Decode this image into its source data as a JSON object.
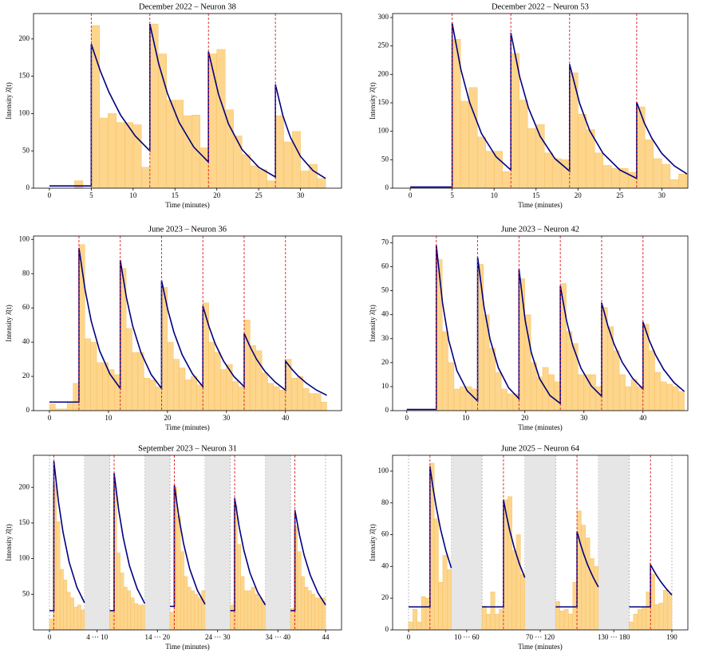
{
  "chart_data": [
    {
      "type": "histogram",
      "title": "December 2022 – Neuron 38",
      "xlabel": "Time (minutes)",
      "ylabel": "Intensity λ̂(t)",
      "bar_color": "#fdd58c",
      "bins": [
        0,
        1,
        2,
        3,
        4,
        5,
        6,
        7,
        8,
        9,
        10,
        11,
        12,
        13,
        14,
        15,
        16,
        17,
        18,
        19,
        20,
        21,
        22,
        23,
        24,
        25,
        26,
        27,
        28,
        29,
        30,
        31,
        32,
        33
      ],
      "counts": [
        0,
        0,
        0,
        10,
        0,
        218,
        94,
        100,
        88,
        88,
        85,
        28,
        220,
        180,
        118,
        118,
        97,
        98,
        54,
        180,
        186,
        105,
        70,
        45,
        30,
        25,
        10,
        97,
        62,
        76,
        23,
        32,
        13
      ],
      "fit": {
        "color": "#00007f",
        "x": [
          0,
          5,
          5,
          6.05,
          7.1,
          8.5,
          10.25,
          12,
          12,
          13.05,
          14.1,
          15.5,
          17.25,
          19,
          19,
          20.2,
          21.4,
          23,
          25,
          27,
          27,
          27.9,
          28.8,
          30,
          31.5,
          33
        ],
        "values": [
          3,
          3,
          193,
          158,
          129,
          98,
          70,
          50,
          220,
          167,
          127,
          88,
          55,
          35,
          183,
          126,
          86,
          52,
          28,
          15,
          139,
          97,
          68,
          42.5,
          23.5,
          13
        ]
      },
      "events": [
        5,
        12,
        19,
        27
      ],
      "event_color": "#e41a1c",
      "xlim": [
        -1.9,
        34.9
      ],
      "ylim": [
        0,
        234
      ],
      "xticks": [
        0,
        5,
        10,
        15,
        20,
        25,
        30
      ],
      "yticks": [
        0,
        50,
        100,
        150,
        200
      ]
    },
    {
      "type": "histogram",
      "title": "December 2022 – Neuron 53",
      "xlabel": "Time (minutes)",
      "ylabel": "Intensity λ̂(t)",
      "bar_color": "#fdd58c",
      "bins": [
        0,
        1,
        2,
        3,
        4,
        5,
        6,
        7,
        8,
        9,
        10,
        11,
        12,
        13,
        14,
        15,
        16,
        17,
        18,
        19,
        20,
        21,
        22,
        23,
        24,
        25,
        26,
        27,
        28,
        29,
        30,
        31,
        32,
        33
      ],
      "counts": [
        0,
        0,
        0,
        0,
        0,
        262,
        153,
        177,
        90,
        65,
        65,
        29,
        237,
        155,
        105,
        112,
        62,
        52,
        50,
        203,
        130,
        103,
        62,
        40,
        35,
        35,
        28,
        143,
        85,
        52,
        42,
        15,
        25
      ],
      "fit": {
        "color": "#00007f",
        "x": [
          0,
          5,
          5,
          6.05,
          7.1,
          8.5,
          10.25,
          12,
          12,
          13.05,
          14.1,
          15.5,
          17.25,
          19,
          19,
          20.2,
          21.4,
          23,
          25,
          27,
          27,
          27.9,
          28.8,
          30,
          31.5,
          33
        ],
        "values": [
          2,
          2,
          290,
          208,
          150,
          96,
          55,
          32,
          273,
          196,
          141,
          91,
          52,
          30,
          218,
          149,
          101,
          61,
          32,
          17,
          151,
          115,
          88,
          61,
          39,
          25
        ]
      },
      "events": [
        5,
        12,
        19,
        27
      ],
      "event_color": "#e41a1c",
      "xlim": [
        -2.1,
        33.1
      ],
      "ylim": [
        0,
        307
      ],
      "xticks": [
        0,
        5,
        10,
        15,
        20,
        25,
        30
      ],
      "yticks": [
        0,
        50,
        100,
        150,
        200,
        250,
        300
      ]
    },
    {
      "type": "histogram",
      "title": "June 2023 – Neuron 36",
      "xlabel": "Time (minutes)",
      "ylabel": "Intensity λ̂(t)",
      "bar_color": "#fdd58c",
      "bins": [
        0,
        1,
        2,
        3,
        4,
        5,
        6,
        7,
        8,
        9,
        10,
        11,
        12,
        13,
        14,
        15,
        16,
        17,
        18,
        19,
        20,
        21,
        22,
        23,
        24,
        25,
        26,
        27,
        28,
        29,
        30,
        31,
        32,
        33,
        34,
        35,
        36,
        37,
        38,
        39,
        40,
        41,
        42,
        43,
        44,
        45,
        46,
        47
      ],
      "counts": [
        4,
        1,
        1,
        5,
        16,
        97,
        42,
        40,
        28,
        28,
        24,
        21,
        83,
        48,
        34,
        34,
        19,
        18,
        14,
        72,
        40,
        30,
        25,
        18,
        20,
        15,
        63,
        40,
        34,
        24,
        27,
        17,
        14,
        53,
        38,
        35,
        22,
        16,
        14,
        12,
        30,
        19,
        20,
        13,
        10,
        10,
        5
      ],
      "fit": {
        "color": "#00007f",
        "x": [
          0,
          5,
          5,
          6.05,
          7.1,
          8.5,
          10.25,
          12,
          12,
          13.05,
          14.1,
          15.5,
          17.25,
          19,
          19,
          20.05,
          21.1,
          22.5,
          24.25,
          26,
          26,
          27.05,
          28.1,
          29.5,
          31.25,
          33,
          33,
          34.05,
          35.1,
          36.5,
          38.25,
          40,
          40,
          41.05,
          42.1,
          43.5,
          45.25,
          47
        ],
        "values": [
          5,
          5,
          95,
          70.5,
          52,
          35,
          21.4,
          13,
          88,
          66,
          49.5,
          34,
          21,
          13,
          76,
          59,
          45.7,
          32.6,
          21.4,
          14,
          61,
          49,
          39,
          29,
          20,
          14,
          45,
          37,
          30,
          23,
          16.7,
          12,
          29,
          24.3,
          20.4,
          16.2,
          12,
          9
        ]
      },
      "events": [
        5,
        12,
        19,
        26,
        33,
        40
      ],
      "event_color": "#e41a1c",
      "xlim": [
        -2.7,
        49.5
      ],
      "ylim": [
        0,
        102
      ],
      "xticks": [
        0,
        10,
        20,
        30,
        40
      ],
      "yticks": [
        0,
        20,
        40,
        60,
        80,
        100
      ]
    },
    {
      "type": "histogram",
      "title": "June 2023 – Neuron 42",
      "xlabel": "Time (minutes)",
      "ylabel": "Intensity λ̂(t)",
      "bar_color": "#fdd58c",
      "bins": [
        0,
        1,
        2,
        3,
        4,
        5,
        6,
        7,
        8,
        9,
        10,
        11,
        12,
        13,
        14,
        15,
        16,
        17,
        18,
        19,
        20,
        21,
        22,
        23,
        24,
        25,
        26,
        27,
        28,
        29,
        30,
        31,
        32,
        33,
        34,
        35,
        36,
        37,
        38,
        39,
        40,
        41,
        42,
        43,
        44,
        45,
        46,
        47
      ],
      "counts": [
        0,
        0,
        0,
        0,
        0,
        63,
        33,
        20,
        9,
        10,
        10,
        9,
        61,
        40,
        26,
        16,
        9,
        7,
        7,
        55,
        40,
        20,
        14,
        18,
        15,
        12,
        53,
        33,
        28,
        15,
        15,
        15,
        10,
        43,
        35,
        25,
        15,
        10,
        13,
        10,
        36,
        25,
        16,
        12,
        11,
        10,
        8
      ],
      "fit": {
        "color": "#00007f",
        "x": [
          0,
          5,
          5,
          6.05,
          7.1,
          8.5,
          10.25,
          12,
          12,
          13.05,
          14.1,
          15.5,
          17.25,
          19,
          19,
          20.05,
          21.1,
          22.5,
          24.25,
          26,
          26,
          27.05,
          28.1,
          29.5,
          31.25,
          33,
          33,
          34.05,
          35.1,
          36.5,
          38.25,
          40,
          40,
          41.05,
          42.1,
          43.5,
          45.25,
          47
        ],
        "values": [
          0.5,
          0.5,
          69,
          45,
          29.4,
          16.6,
          8.2,
          4,
          64,
          43.7,
          29.8,
          17.9,
          9.5,
          5,
          59,
          37.7,
          24.1,
          13.3,
          6.3,
          3,
          52,
          37.6,
          27.2,
          17.7,
          10.3,
          6,
          45,
          35.4,
          27.8,
          20.1,
          13.5,
          9,
          37,
          29.4,
          23.4,
          17.2,
          11.7,
          8
        ]
      },
      "events": [
        5,
        12,
        19,
        26,
        33,
        40
      ],
      "event_color": "#e41a1c",
      "xlim": [
        -2.4,
        47.6
      ],
      "ylim": [
        0,
        72.8
      ],
      "xticks": [
        0,
        10,
        20,
        30,
        40
      ],
      "yticks": [
        0,
        10,
        20,
        30,
        40,
        50,
        60,
        70
      ]
    },
    {
      "type": "broken-histogram",
      "title": "September 2023 – Neuron 31",
      "xlabel": "Time (minutes)",
      "ylabel": "Intensity λ̂(t)",
      "bar_color": "#fdd58c",
      "gap_color": "#e6e6e6",
      "segments": [
        {
          "bins": [
            0,
            0.4,
            0.8,
            1.2,
            1.6,
            2,
            2.4,
            2.8,
            3.2,
            3.6,
            4
          ],
          "counts": [
            15,
            205,
            152,
            85,
            70,
            53,
            45,
            32,
            35,
            28
          ]
        },
        {
          "bins": [
            10,
            10.4,
            10.8,
            11.2,
            11.6,
            12,
            12.4,
            12.8,
            13.2,
            13.6,
            14
          ],
          "counts": [
            27,
            200,
            108,
            80,
            60,
            55,
            45,
            37,
            35,
            35
          ]
        },
        {
          "bins": [
            20,
            20.4,
            20.8,
            21.2,
            21.6,
            22,
            22.4,
            22.8,
            23.2,
            23.6,
            24
          ],
          "counts": [
            25,
            200,
            160,
            110,
            75,
            60,
            55,
            50,
            45,
            55
          ]
        },
        {
          "bins": [
            30,
            30.4,
            30.8,
            31.2,
            31.6,
            32,
            32.4,
            32.8,
            33.2,
            33.6,
            34
          ],
          "counts": [
            35,
            175,
            120,
            75,
            55,
            55,
            60,
            50,
            45,
            40
          ]
        },
        {
          "bins": [
            40,
            40.4,
            40.8,
            41.2,
            41.6,
            42,
            42.4,
            42.8,
            43.2,
            43.6,
            44
          ],
          "counts": [
            30,
            145,
            110,
            75,
            60,
            55,
            50,
            45,
            45,
            45
          ]
        }
      ],
      "fit": {
        "color": "#00007f",
        "x": [
          0,
          0.5,
          0.5,
          1.025,
          1.55,
          2.25,
          3.125,
          4,
          null,
          10,
          10.5,
          10.5,
          11.025,
          11.55,
          12.25,
          13.125,
          14,
          null,
          20,
          20.5,
          20.5,
          21.025,
          21.55,
          22.25,
          23.125,
          24,
          null,
          30,
          30.5,
          30.5,
          31.025,
          31.55,
          32.25,
          33.125,
          34,
          null,
          40,
          40.5,
          40.5,
          41.025,
          41.55,
          42.25,
          43.125,
          44
        ],
        "values": [
          27,
          27,
          237,
          180,
          137,
          95,
          60,
          38,
          null,
          27,
          27,
          220,
          168,
          129,
          90,
          58,
          37,
          null,
          33,
          33,
          203,
          157,
          121,
          85.5,
          55.5,
          36,
          null,
          27,
          27,
          185,
          144,
          112,
          80,
          53,
          35,
          null,
          27,
          27,
          168,
          133,
          105,
          77,
          52,
          35
        ]
      },
      "events": [
        0.5,
        10.5,
        20.5,
        30.5,
        40.5
      ],
      "event_color": "#e41a1c",
      "ylim": [
        0,
        245
      ],
      "xticks": [
        0,
        {
          "value": [
            4,
            10
          ],
          "label": "4 ··· 10"
        },
        {
          "value": [
            14,
            20
          ],
          "label": "14 ··· 20"
        },
        {
          "value": [
            24,
            30
          ],
          "label": "24 ··· 30"
        },
        {
          "value": [
            34,
            40
          ],
          "label": "34 ··· 40"
        },
        44
      ],
      "yticks": [
        50,
        100,
        150,
        200
      ]
    },
    {
      "type": "broken-histogram",
      "title": "June 2025 – Neuron 64",
      "xlabel": "Time (minutes)",
      "ylabel": "Intensity λ̂(t)",
      "bar_color": "#fdd58c",
      "gap_color": "#e6e6e6",
      "segments": [
        {
          "bins": [
            0,
            1,
            2,
            3,
            4,
            5,
            6,
            7,
            8,
            9,
            10
          ],
          "counts": [
            5,
            13,
            5,
            21,
            20,
            105,
            70,
            30,
            47,
            38
          ]
        },
        {
          "bins": [
            60,
            61,
            62,
            63,
            64,
            65,
            66,
            67,
            68,
            69,
            70
          ],
          "counts": [
            15,
            10,
            24,
            10,
            13,
            82,
            84,
            50,
            60,
            35
          ]
        },
        {
          "bins": [
            120,
            121,
            122,
            123,
            124,
            125,
            126,
            127,
            128,
            129,
            130
          ],
          "counts": [
            18,
            12,
            13,
            10,
            30,
            75,
            66,
            58,
            45,
            40
          ]
        },
        {
          "bins": [
            180,
            181,
            182,
            183,
            184,
            185,
            186,
            187,
            188,
            189,
            190
          ],
          "counts": [
            5,
            10,
            13,
            14,
            24,
            35,
            16,
            17,
            25,
            23
          ]
        }
      ],
      "fit": {
        "color": "#00007f",
        "x": [
          0,
          5,
          5,
          5.75,
          6.5,
          7.5,
          8.75,
          10,
          null,
          60,
          65,
          65,
          65.75,
          66.5,
          67.5,
          68.75,
          70,
          null,
          120,
          125,
          125,
          125.75,
          126.5,
          127.5,
          128.75,
          130,
          null,
          180,
          185,
          185,
          185.75,
          186.5,
          187.5,
          188.75,
          190
        ],
        "values": [
          14.5,
          14.5,
          103,
          89,
          77,
          63.3,
          49.7,
          39,
          null,
          14.5,
          14.5,
          82,
          71.5,
          62.4,
          52,
          41.4,
          33,
          null,
          14.5,
          14.5,
          62,
          54.7,
          48.3,
          40.9,
          33.3,
          27,
          null,
          14.5,
          14.5,
          41,
          37.4,
          34,
          30,
          25.7,
          22
        ]
      },
      "events": [
        5,
        65,
        125,
        185
      ],
      "event_color": "#e41a1c",
      "ylim": [
        0,
        110
      ],
      "xticks": [
        0,
        {
          "value": [
            10,
            60
          ],
          "label": "10 ··· 60"
        },
        {
          "value": [
            70,
            120
          ],
          "label": "70 ··· 120"
        },
        {
          "value": [
            130,
            180
          ],
          "label": "130 ··· 180"
        },
        190
      ],
      "yticks": [
        0,
        20,
        40,
        60,
        80,
        100
      ]
    }
  ]
}
